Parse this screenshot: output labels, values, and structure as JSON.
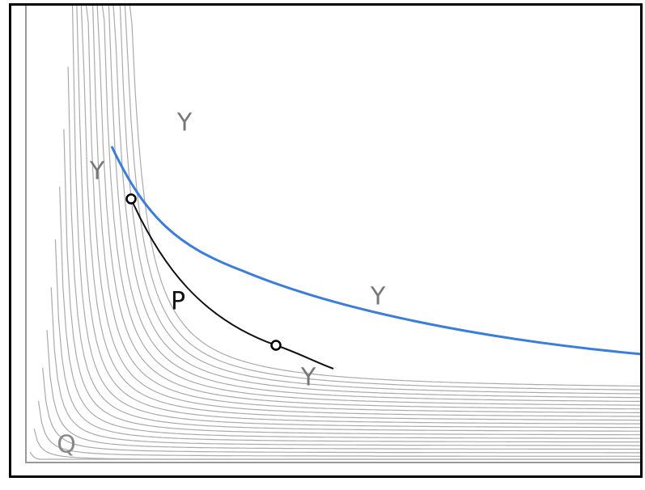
{
  "labels": [
    "Y",
    "Y",
    "Y",
    "Y",
    "P",
    "Q"
  ]
}
